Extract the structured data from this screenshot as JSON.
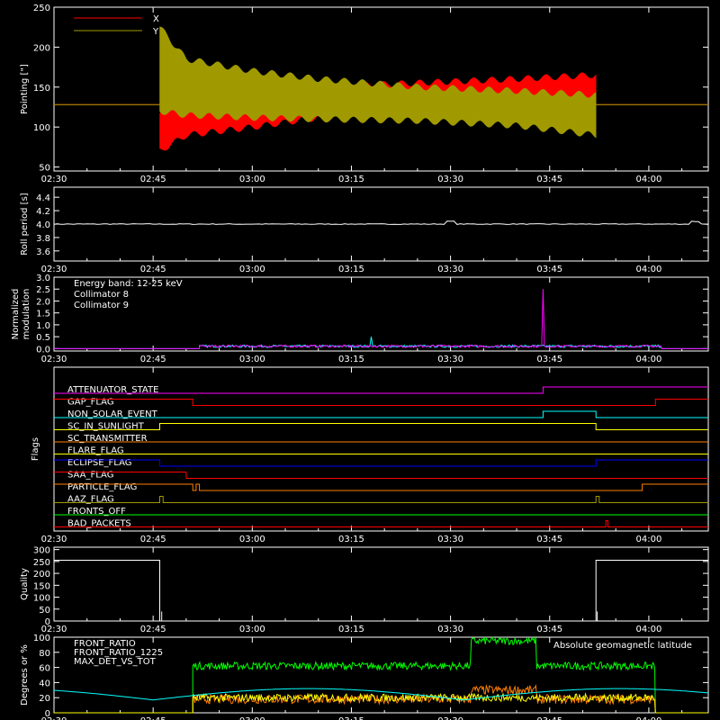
{
  "time_ticks": [
    "02:30",
    "02:45",
    "03:00",
    "03:15",
    "03:30",
    "03:45",
    "04:00"
  ],
  "time_range_minutes": [
    0,
    99
  ],
  "chart_data": [
    {
      "id": "pointing",
      "type": "line",
      "ylabel": "Pointing [\"]",
      "ylim": [
        45,
        250
      ],
      "yticks": [
        50,
        100,
        150,
        200,
        250
      ],
      "legend": [
        {
          "name": "X",
          "color": "#ff0000"
        },
        {
          "name": "Y",
          "color": "#a09a00"
        }
      ],
      "series": [
        {
          "name": "X",
          "color": "#ff0000",
          "baseline": 128,
          "active_start": 16,
          "active_end": 82,
          "envelope_low": [
            [
              16,
              70
            ],
            [
              20,
              90
            ],
            [
              30,
              100
            ],
            [
              40,
              112
            ],
            [
              55,
              120
            ],
            [
              70,
              126
            ],
            [
              82,
              130
            ]
          ],
          "envelope_high": [
            [
              16,
              120
            ],
            [
              20,
              130
            ],
            [
              30,
              140
            ],
            [
              40,
              150
            ],
            [
              55,
              155
            ],
            [
              70,
              160
            ],
            [
              82,
              165
            ]
          ]
        },
        {
          "name": "Y",
          "color": "#a09a00",
          "baseline": 128,
          "active_start": 16,
          "active_end": 82,
          "envelope_low": [
            [
              16,
              120
            ],
            [
              20,
              115
            ],
            [
              30,
              112
            ],
            [
              40,
              110
            ],
            [
              55,
              108
            ],
            [
              70,
              102
            ],
            [
              82,
              90
            ]
          ],
          "envelope_high": [
            [
              16,
              225
            ],
            [
              20,
              185
            ],
            [
              30,
              170
            ],
            [
              40,
              160
            ],
            [
              55,
              150
            ],
            [
              70,
              145
            ],
            [
              82,
              140
            ]
          ]
        }
      ]
    },
    {
      "id": "roll",
      "type": "line",
      "ylabel": "Roll period [s]",
      "ylim": [
        3.45,
        4.55
      ],
      "yticks": [
        "3.6",
        "3.8",
        "4.0",
        "4.2",
        "4.4"
      ],
      "series": [
        {
          "name": "",
          "color": "#ffffff",
          "value": 4.0
        }
      ]
    },
    {
      "id": "modulation",
      "type": "line",
      "ylabel": "Normalized modulation",
      "ylim": [
        -0.1,
        3.0
      ],
      "yticks": [
        "0.0",
        "0.5",
        "1.0",
        "1.5",
        "2.0",
        "2.5",
        "3.0"
      ],
      "legend_title": "Energy band: 12-25 keV",
      "series": [
        {
          "name": "Collimator 8",
          "color": "#00ffff",
          "spikes": [
            [
              48,
              0.5
            ]
          ]
        },
        {
          "name": "Collimator 9",
          "color": "#ff00ff",
          "spikes": [
            [
              74,
              2.5
            ]
          ]
        }
      ],
      "active_range": [
        22,
        92
      ]
    },
    {
      "id": "flags",
      "type": "line",
      "ylabel": "Flags",
      "series": [
        {
          "name": "ATTENUATOR_STATE",
          "color": "#ff00ff",
          "steps": [
            [
              0,
              0
            ],
            [
              74,
              1
            ]
          ]
        },
        {
          "name": "GAP_FLAG",
          "color": "#ff0000",
          "steps": [
            [
              0,
              1
            ],
            [
              21,
              0
            ],
            [
              91,
              1
            ]
          ]
        },
        {
          "name": "NON_SOLAR_EVENT",
          "color": "#00ffff",
          "steps": [
            [
              0,
              0
            ],
            [
              74,
              1
            ],
            [
              82,
              0
            ]
          ]
        },
        {
          "name": "SC_IN_SUNLIGHT",
          "color": "#ffff00",
          "steps": [
            [
              0,
              0
            ],
            [
              16,
              1
            ],
            [
              82,
              0
            ]
          ]
        },
        {
          "name": "SC_TRANSMITTER",
          "color": "#ff8000",
          "steps": [
            [
              0,
              0
            ]
          ]
        },
        {
          "name": "FLARE_FLAG",
          "color": "#ffff00",
          "steps": [
            [
              0,
              0
            ]
          ]
        },
        {
          "name": "ECLIPSE_FLAG",
          "color": "#0000ff",
          "steps": [
            [
              0,
              1
            ],
            [
              16,
              0
            ],
            [
              82,
              1
            ]
          ]
        },
        {
          "name": "SAA_FLAG",
          "color": "#ff0000",
          "steps": [
            [
              0,
              1
            ],
            [
              20,
              0
            ],
            [
              99,
              0
            ]
          ]
        },
        {
          "name": "PARTICLE_FLAG",
          "color": "#ff8000",
          "steps": [
            [
              0,
              1
            ],
            [
              21,
              0
            ],
            [
              21.5,
              1
            ],
            [
              22,
              0
            ],
            [
              89,
              1
            ]
          ]
        },
        {
          "name": "AAZ_FLAG",
          "color": "#a09a00",
          "steps": [
            [
              0,
              0
            ],
            [
              16,
              1
            ],
            [
              16.5,
              0
            ],
            [
              82,
              1
            ],
            [
              82.5,
              0
            ]
          ]
        },
        {
          "name": "FRONTS_OFF",
          "color": "#00ff00",
          "steps": [
            [
              0,
              0
            ]
          ]
        },
        {
          "name": "BAD_PACKETS",
          "color": "#ff0000",
          "steps": [
            [
              0,
              0
            ],
            [
              83.5,
              1
            ],
            [
              83.8,
              0
            ]
          ]
        }
      ]
    },
    {
      "id": "quality",
      "type": "line",
      "ylabel": "Quality",
      "ylim": [
        0,
        310
      ],
      "yticks": [
        0,
        50,
        100,
        150,
        200,
        250,
        300
      ],
      "series": [
        {
          "name": "",
          "color": "#ffffff",
          "steps": [
            [
              0,
              255
            ],
            [
              16,
              0
            ],
            [
              82,
              255
            ]
          ]
        }
      ]
    },
    {
      "id": "ratios",
      "type": "line",
      "ylabel": "Degrees or %",
      "ylim": [
        0,
        100
      ],
      "yticks": [
        0,
        20,
        40,
        60,
        80,
        100
      ],
      "right_label": "Absolute geomagnetic latitude",
      "right_label_color": "#00ffff",
      "series": [
        {
          "name": "FRONT_RATIO",
          "color": "#ffff00",
          "level": 20,
          "active": [
            21,
            91
          ]
        },
        {
          "name": "FRONT_RATIO_1225",
          "color": "#00ff00",
          "level": 62,
          "active": [
            21,
            91
          ],
          "bump": [
            [
              63,
              73,
              95
            ]
          ]
        },
        {
          "name": "MAX_DET_VS_TOT",
          "color": "#ff8000",
          "level": 18,
          "active": [
            21,
            91
          ],
          "bump": [
            [
              63,
              73,
              30
            ]
          ]
        },
        {
          "name": "Absolute geomagnetic latitude",
          "color": "#00ffff",
          "sine": {
            "mean": 17,
            "amp": 15,
            "period": 47,
            "phase": 15
          }
        }
      ]
    }
  ]
}
